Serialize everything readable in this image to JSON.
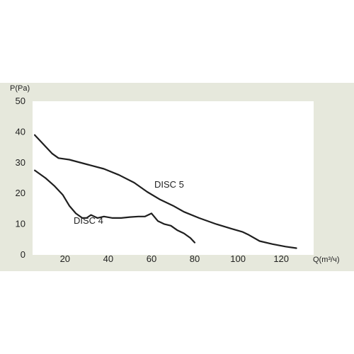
{
  "chart_data": {
    "type": "line",
    "ylabel": "P(Pa)",
    "xlabel": "Q(m³/ч)",
    "xlim": [
      5,
      135
    ],
    "ylim": [
      0,
      50
    ],
    "x_ticks": [
      20,
      40,
      60,
      80,
      100,
      120
    ],
    "y_ticks": [
      0,
      10,
      20,
      30,
      40,
      50
    ],
    "grid": false,
    "legend": "inline labels",
    "colors": {
      "panel": "#e6e8dc",
      "plot": "#ffffff",
      "line": "#1f1f1f"
    },
    "series": [
      {
        "name": "DISC 5",
        "points": [
          [
            6,
            39
          ],
          [
            10,
            36
          ],
          [
            14,
            33
          ],
          [
            17,
            31.5
          ],
          [
            22,
            31
          ],
          [
            30,
            29.5
          ],
          [
            38,
            28
          ],
          [
            45,
            26
          ],
          [
            52,
            23.5
          ],
          [
            58,
            20.5
          ],
          [
            64,
            18
          ],
          [
            70,
            16
          ],
          [
            75,
            14
          ],
          [
            82,
            12
          ],
          [
            90,
            10
          ],
          [
            97,
            8.5
          ],
          [
            102,
            7.5
          ],
          [
            105,
            6.5
          ],
          [
            110,
            4.5
          ],
          [
            116,
            3.5
          ],
          [
            122,
            2.7
          ],
          [
            127,
            2.2
          ]
        ]
      },
      {
        "name": "DISC 4",
        "points": [
          [
            6,
            27.5
          ],
          [
            11,
            25
          ],
          [
            15,
            22.5
          ],
          [
            19,
            19.5
          ],
          [
            22,
            16
          ],
          [
            25,
            13.5
          ],
          [
            28,
            12
          ],
          [
            30,
            12
          ],
          [
            32,
            13
          ],
          [
            35,
            12
          ],
          [
            38,
            12.5
          ],
          [
            42,
            12
          ],
          [
            46,
            12
          ],
          [
            50,
            12.3
          ],
          [
            54,
            12.5
          ],
          [
            57,
            12.5
          ],
          [
            60,
            13.5
          ],
          [
            63,
            11
          ],
          [
            66,
            10
          ],
          [
            69,
            9.5
          ],
          [
            72,
            8
          ],
          [
            75,
            7
          ],
          [
            78,
            5.5
          ],
          [
            80,
            4
          ]
        ]
      }
    ]
  }
}
